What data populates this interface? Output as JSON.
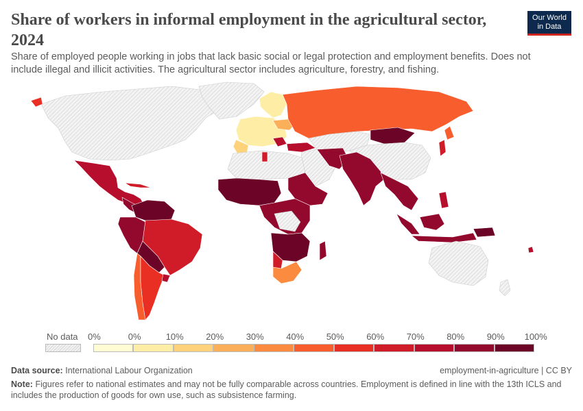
{
  "title": "Share of workers in informal employment in the agricultural sector, 2024",
  "subtitle": "Share of employed people working in jobs that lack basic social or legal protection and employment benefits. Does not include illegal and illicit activities. The agricultural sector includes agriculture, forestry, and fishing.",
  "logo": {
    "line1": "Our World",
    "line2": "in Data"
  },
  "legend": {
    "no_data_label": "No data",
    "labels": [
      "0%",
      "0%",
      "10%",
      "20%",
      "30%",
      "40%",
      "50%",
      "60%",
      "70%",
      "80%",
      "90%",
      "100%"
    ],
    "colors": [
      "#fffbd2",
      "#feeda4",
      "#fdd27b",
      "#fcaf59",
      "#fb8c3f",
      "#f85d2e",
      "#e92f24",
      "#cf1c28",
      "#b60e2c",
      "#93082d",
      "#6b0426"
    ]
  },
  "footer": {
    "source_label": "Data source:",
    "source": "International Labour Organization",
    "slug": "employment-in-agriculture | CC BY",
    "note_label": "Note:",
    "note": "Figures refer to national estimates and may not be fully comparable across countries. Employment is defined in line with the 13th ICLS and includes the production of goods for own use, such as subsistence farming."
  },
  "map": {
    "nodata_fill": "#ececec",
    "regions": [
      {
        "name": "Russia",
        "color": "#f85d2e"
      },
      {
        "name": "Mongolia",
        "color": "#6b0426"
      },
      {
        "name": "Europe",
        "color": "#feeda4"
      },
      {
        "name": "Ukraine",
        "color": "#fcaf59"
      },
      {
        "name": "Mexico",
        "color": "#b60e2c"
      },
      {
        "name": "Brazil",
        "color": "#cf1c28"
      },
      {
        "name": "Argentina",
        "color": "#e92f24"
      },
      {
        "name": "Chile",
        "color": "#f85d2e"
      },
      {
        "name": "South Africa",
        "color": "#fb8c3f"
      },
      {
        "name": "India",
        "color": "#93082d"
      },
      {
        "name": "Indonesia",
        "color": "#93082d"
      }
    ]
  }
}
